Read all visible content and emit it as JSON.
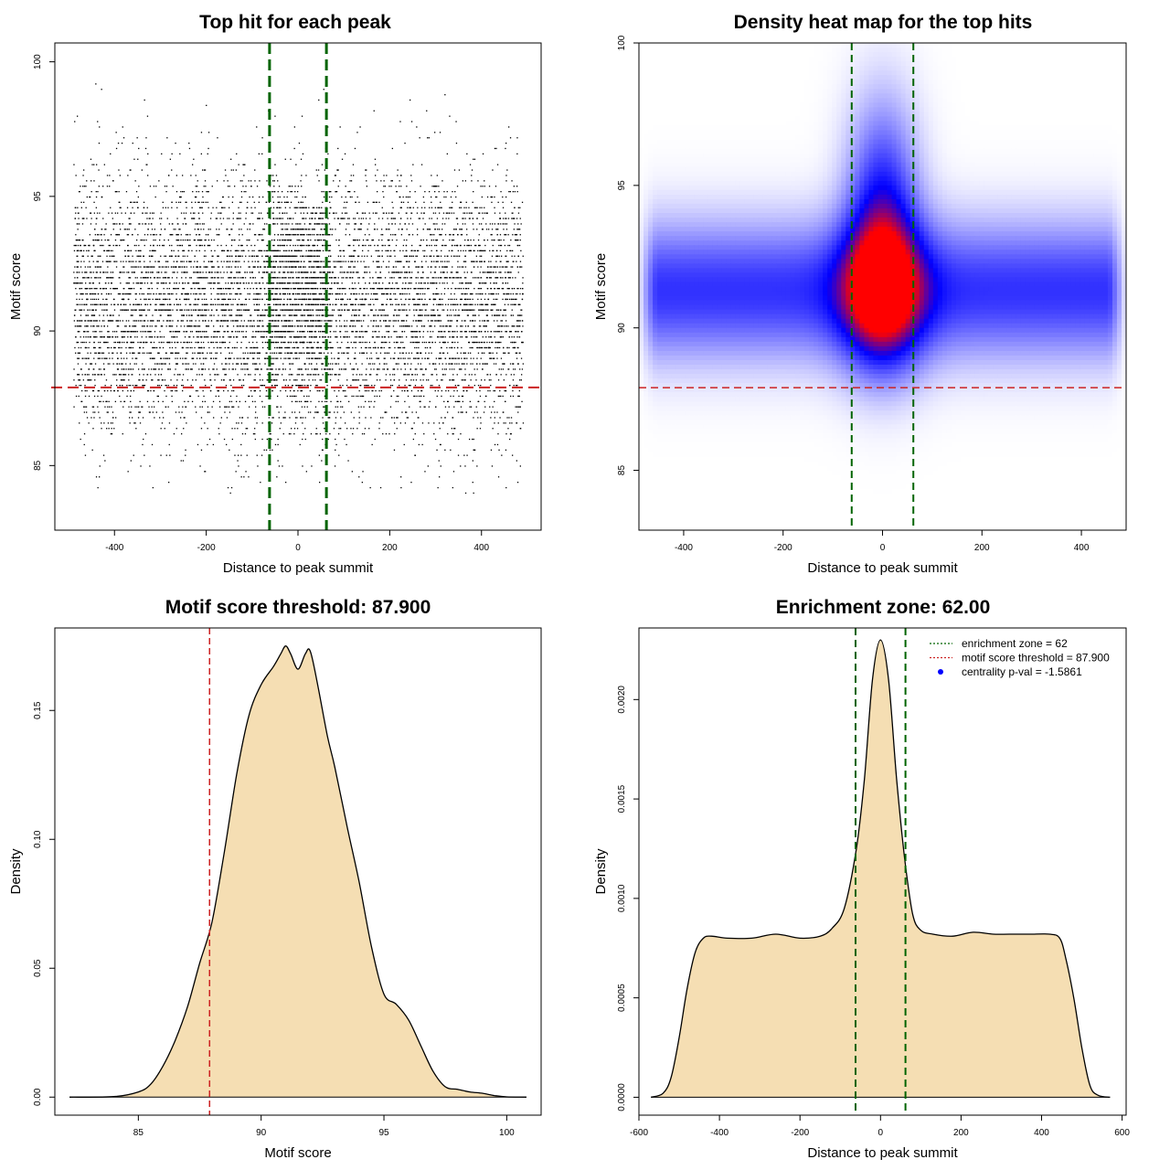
{
  "colors": {
    "threshold_line": "#cc2222",
    "zone_line": "#006400",
    "density_fill": "#f5deb3",
    "points": "#000000",
    "heat_low": "#ffffff",
    "heat_mid": "#0000ff",
    "heat_high": "#ff0000"
  },
  "chart_data": [
    {
      "id": "scatter",
      "type": "scatter",
      "title": "Top hit for each peak",
      "xlabel": "Distance to peak summit",
      "ylabel": "Motif score",
      "xlim": [
        -530,
        530
      ],
      "ylim": [
        82.6,
        100.7
      ],
      "xticks": [
        -400,
        -200,
        0,
        200,
        400
      ],
      "yticks": [
        85,
        90,
        95,
        100
      ],
      "points_x_range": [
        -490,
        490
      ],
      "points_y_range": [
        84,
        99.9
      ],
      "score_distribution": {
        "mean": 91.0,
        "sd": 2.4
      },
      "central_bump": {
        "center": 0,
        "halfwidth": 70
      },
      "enrichment_zone": [
        -62,
        62
      ],
      "threshold": 87.9
    },
    {
      "id": "heatmap",
      "type": "heatmap",
      "title": "Density heat map for the top hits",
      "xlabel": "Distance to peak summit",
      "ylabel": "Motif score",
      "xlim": [
        -490,
        490
      ],
      "ylim": [
        82.9,
        100.0
      ],
      "xticks": [
        -400,
        -200,
        0,
        200,
        400
      ],
      "yticks": [
        85,
        90,
        95,
        100
      ],
      "peak_center": {
        "x": 0,
        "y": 91.3
      },
      "background_band": {
        "y": 91.3,
        "sd": 1.5
      },
      "enrichment_zone": [
        -62,
        62
      ],
      "threshold": 87.9
    },
    {
      "id": "score_density",
      "type": "area",
      "title": "Motif score threshold: 87.900",
      "xlabel": "Motif score",
      "ylabel": "Density",
      "xlim": [
        81.6,
        101.4
      ],
      "ylim": [
        -0.007,
        0.182
      ],
      "xticks": [
        85,
        90,
        95,
        100
      ],
      "yticks": [
        0.0,
        0.05,
        0.1,
        0.15
      ],
      "ytick_labels": [
        "0.00",
        "0.05",
        "0.10",
        "0.15"
      ],
      "x": [
        82.2,
        84.0,
        85.0,
        85.5,
        86.0,
        86.5,
        87.0,
        87.5,
        88.0,
        88.5,
        89.0,
        89.5,
        90.0,
        90.5,
        90.8,
        91.0,
        91.2,
        91.5,
        91.8,
        92.0,
        92.3,
        92.7,
        93.0,
        93.5,
        94.0,
        94.5,
        95.0,
        95.5,
        96.0,
        96.5,
        97.0,
        97.5,
        98.0,
        98.5,
        99.0,
        99.5,
        100.0,
        100.8
      ],
      "y": [
        0.0,
        0.0002,
        0.002,
        0.005,
        0.012,
        0.022,
        0.035,
        0.052,
        0.068,
        0.095,
        0.125,
        0.148,
        0.16,
        0.167,
        0.172,
        0.175,
        0.172,
        0.166,
        0.172,
        0.173,
        0.16,
        0.14,
        0.128,
        0.105,
        0.083,
        0.058,
        0.04,
        0.036,
        0.03,
        0.02,
        0.01,
        0.004,
        0.003,
        0.002,
        0.0015,
        0.0006,
        0.0001,
        0.0
      ],
      "threshold": 87.9
    },
    {
      "id": "distance_density",
      "type": "area",
      "title": "Enrichment zone: 62.00",
      "xlabel": "Distance to peak summit",
      "ylabel": "Density",
      "xlim": [
        -600,
        610
      ],
      "ylim": [
        -9e-05,
        0.00236
      ],
      "xticks": [
        -600,
        -400,
        -200,
        0,
        200,
        400,
        600
      ],
      "yticks": [
        0.0,
        0.0005,
        0.001,
        0.0015,
        0.002
      ],
      "ytick_labels": [
        "0.0000",
        "0.0005",
        "0.0010",
        "0.0015",
        "0.0020"
      ],
      "x": [
        -570,
        -540,
        -520,
        -500,
        -480,
        -460,
        -440,
        -420,
        -380,
        -320,
        -260,
        -200,
        -150,
        -120,
        -90,
        -60,
        -40,
        -20,
        0,
        20,
        40,
        60,
        80,
        100,
        130,
        180,
        230,
        280,
        320,
        370,
        420,
        445,
        460,
        480,
        500,
        520,
        540,
        570
      ],
      "y": [
        0.0,
        2e-05,
        0.0001,
        0.0003,
        0.00055,
        0.00073,
        0.0008,
        0.00081,
        0.0008,
        0.0008,
        0.00082,
        0.0008,
        0.00081,
        0.00085,
        0.00095,
        0.00125,
        0.0016,
        0.0021,
        0.0023,
        0.0021,
        0.0016,
        0.0012,
        0.00092,
        0.00084,
        0.00082,
        0.00081,
        0.00083,
        0.00082,
        0.00082,
        0.00082,
        0.00082,
        0.0008,
        0.0007,
        0.0005,
        0.00025,
        6e-05,
        1e-05,
        0.0
      ],
      "enrichment_zone": [
        -62,
        62
      ],
      "legend": {
        "position": "top-right",
        "entries": [
          {
            "label": "enrichment zone = 62",
            "style": "dotted",
            "color": "#006400"
          },
          {
            "label": "motif score threshold = 87.900",
            "style": "dotted",
            "color": "#cc2222"
          },
          {
            "label": "centrality p-val = -1.5861",
            "style": "point",
            "color": "#0000ff"
          }
        ]
      }
    }
  ]
}
